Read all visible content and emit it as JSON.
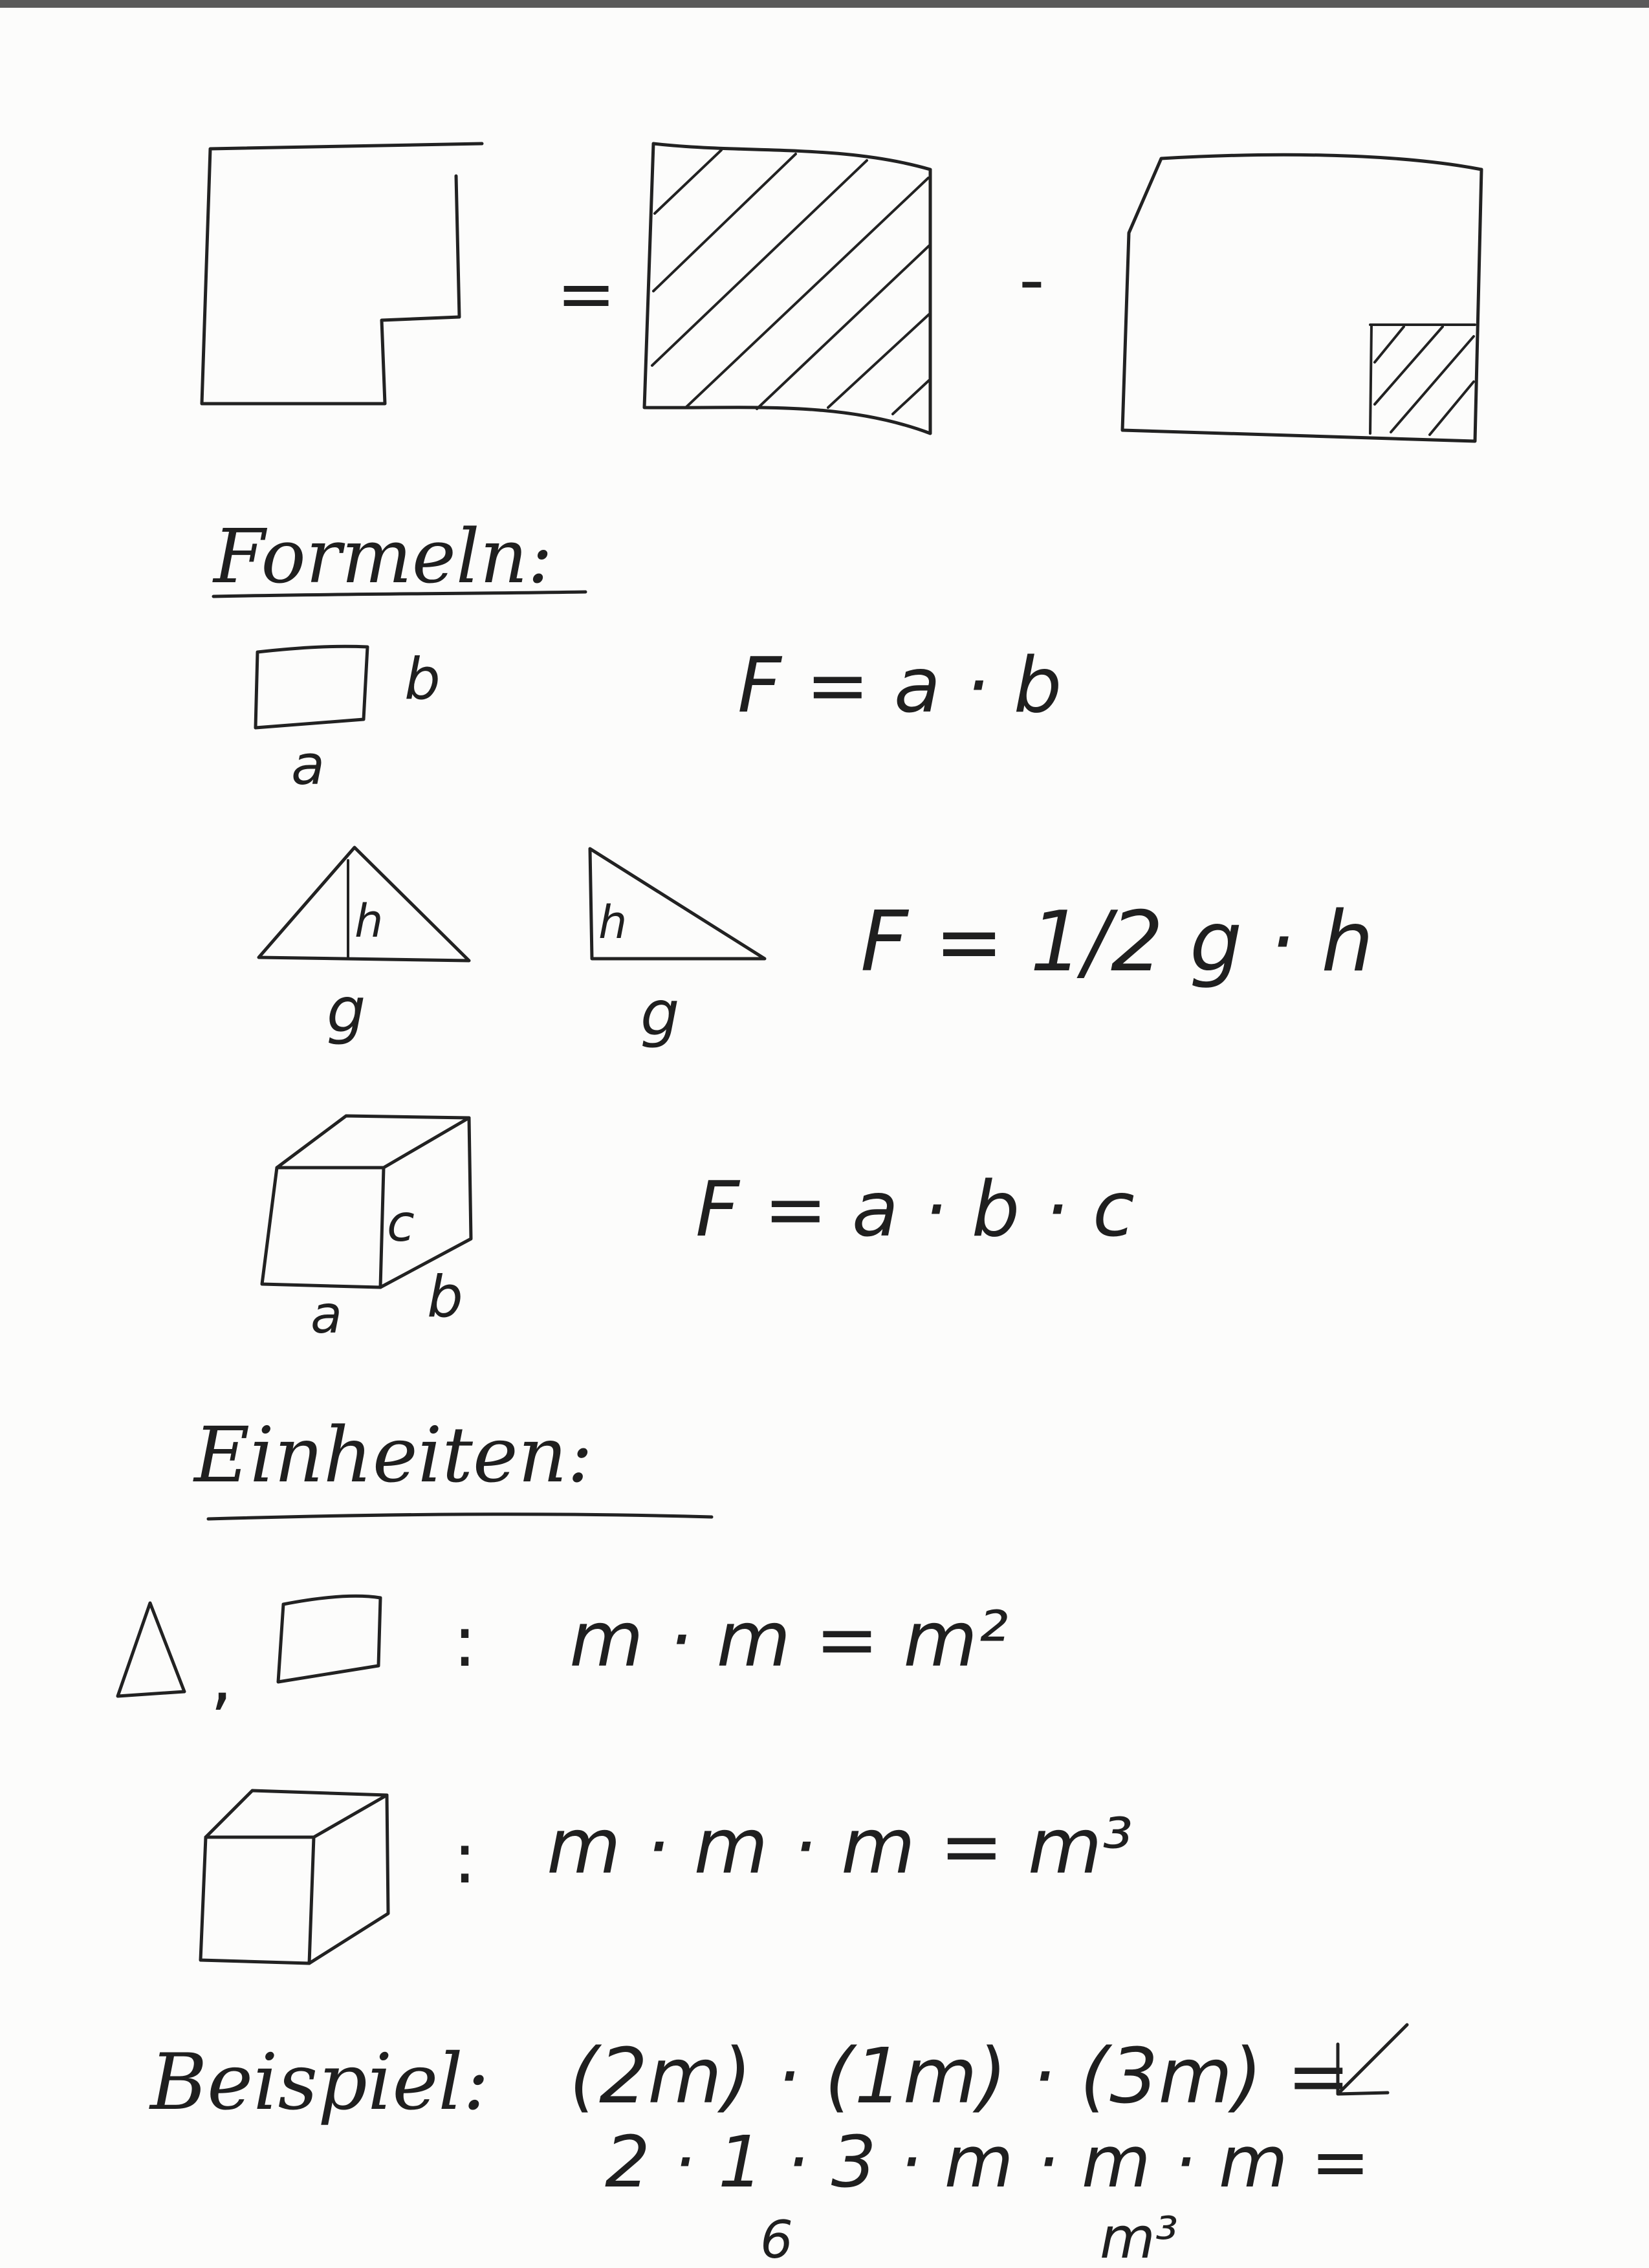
{
  "page": {
    "colors": {
      "ink": "#1f1f1f",
      "paper": "#fcfcfb",
      "scan_edge": "#5a5a5a"
    }
  },
  "top_equation": {
    "equals": "=",
    "minus": "-"
  },
  "formulas": {
    "heading": "Formeln:",
    "rectangle": {
      "side_a": "a",
      "side_b": "b",
      "formula": "F = a · b"
    },
    "triangle": {
      "height": "h",
      "base": "g",
      "height_right": "h",
      "base_right": "g",
      "formula": "F = 1/2 g · h"
    },
    "cuboid": {
      "edge_a": "a",
      "edge_b": "b",
      "edge_c": "c",
      "formula": "F = a · b · c"
    }
  },
  "units": {
    "heading": "Einheiten:",
    "area_separator": ",",
    "area_colon": ":",
    "area_rule": "m · m = m²",
    "volume_colon": ":",
    "volume_rule": "m · m · m = m³"
  },
  "example": {
    "label": "Beispiel:",
    "expression": "(2m) · (1m) · (3m) =",
    "arrow_icon": "arrow-down-left-icon",
    "expanded": "2 · 1 · 3 · m · m · m =",
    "numeric_product": "6",
    "unit_product": "m³"
  }
}
